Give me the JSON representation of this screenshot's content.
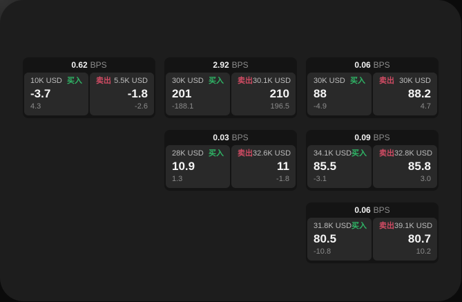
{
  "labels": {
    "bps_unit": "BPS",
    "buy": "买入",
    "sell": "卖出"
  },
  "colors": {
    "buy": "#2fb566",
    "sell": "#cf4b63",
    "page_bg": "#1d1d1d",
    "card_bg": "#141414",
    "panel_bg": "#292929"
  },
  "cards": [
    {
      "bps": "0.62",
      "buy": {
        "amount": "10K USD",
        "value": "-3.7",
        "sub": "4.3"
      },
      "sell": {
        "amount": "5.5K USD",
        "value": "-1.8",
        "sub": "-2.6"
      }
    },
    {
      "bps": "2.92",
      "buy": {
        "amount": "30K USD",
        "value": "201",
        "sub": "-188.1"
      },
      "sell": {
        "amount": "30.1K USD",
        "value": "210",
        "sub": "196.5"
      }
    },
    {
      "bps": "0.06",
      "buy": {
        "amount": "30K USD",
        "value": "88",
        "sub": "-4.9"
      },
      "sell": {
        "amount": "30K USD",
        "value": "88.2",
        "sub": "4.7"
      }
    },
    {
      "bps": "0.03",
      "buy": {
        "amount": "28K USD",
        "value": "10.9",
        "sub": "1.3"
      },
      "sell": {
        "amount": "32.6K USD",
        "value": "11",
        "sub": "-1.8"
      }
    },
    {
      "bps": "0.09",
      "buy": {
        "amount": "34.1K USD",
        "value": "85.5",
        "sub": "-3.1"
      },
      "sell": {
        "amount": "32.8K USD",
        "value": "85.8",
        "sub": "3.0"
      }
    },
    {
      "bps": "0.06",
      "buy": {
        "amount": "31.8K USD",
        "value": "80.5",
        "sub": "-10.8"
      },
      "sell": {
        "amount": "39.1K USD",
        "value": "80.7",
        "sub": "10.2"
      }
    }
  ]
}
